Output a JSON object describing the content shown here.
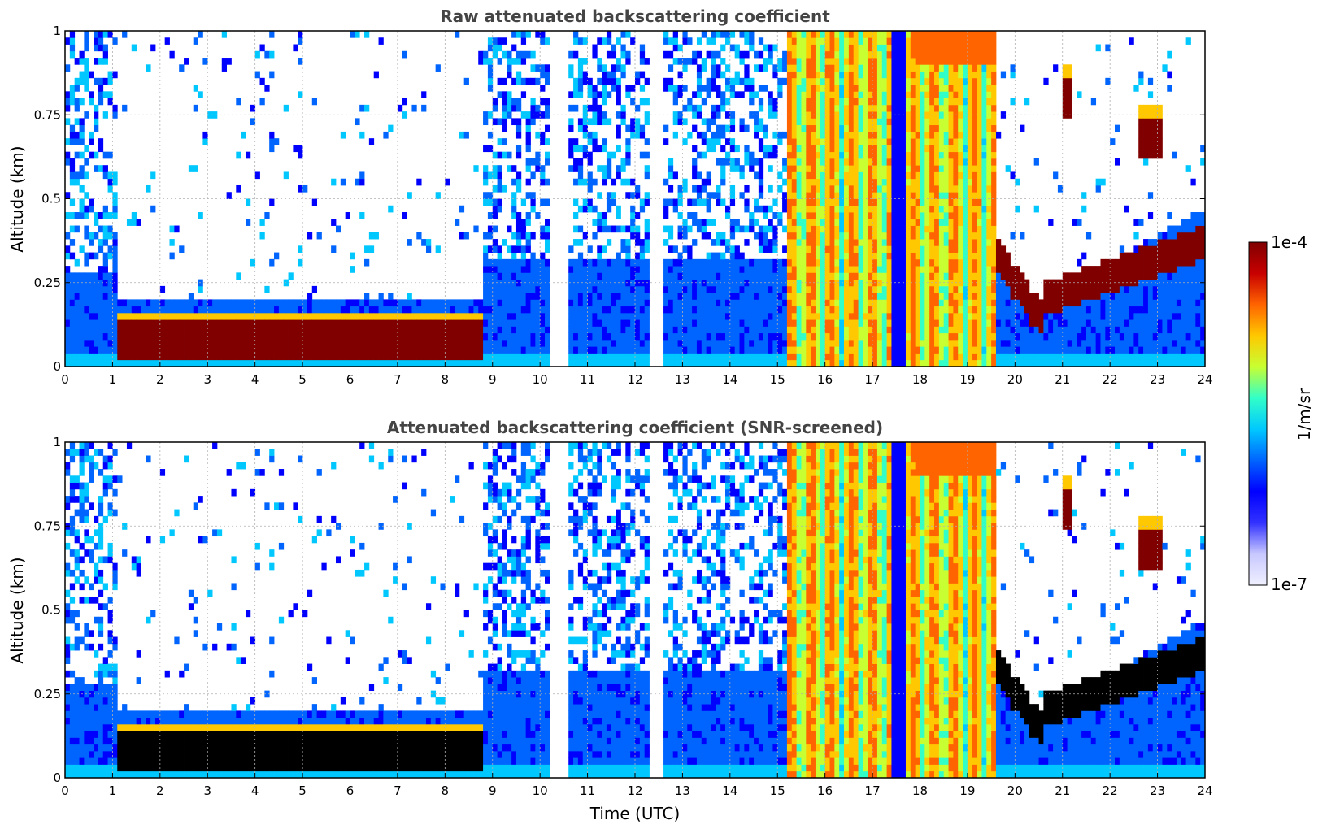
{
  "chart_data": [
    {
      "type": "heatmap",
      "title": "Raw attenuated backscattering coefficient",
      "xlabel": "",
      "ylabel": "Altitude (km)",
      "xlim": [
        0,
        24
      ],
      "ylim": [
        0,
        1
      ],
      "x_ticks": [
        "0",
        "1",
        "2",
        "3",
        "4",
        "5",
        "6",
        "7",
        "8",
        "9",
        "10",
        "11",
        "12",
        "13",
        "14",
        "15",
        "16",
        "17",
        "18",
        "19",
        "20",
        "21",
        "22",
        "23",
        "24"
      ],
      "y_ticks": [
        "0",
        "0.25",
        "0.5",
        "0.75",
        "1"
      ],
      "grid": true,
      "data_gaps_utc": [
        [
          10.2,
          10.6
        ],
        [
          12.3,
          12.6
        ]
      ],
      "layers": [
        {
          "time_start": 1.1,
          "time_end": 8.8,
          "altitude_km": 0.08,
          "level": "high"
        },
        {
          "time_start": 15.2,
          "time_end": 19.6,
          "altitude_km": [
            0.0,
            1.0
          ],
          "level": "medium-high"
        },
        {
          "time_start": 19.6,
          "time_end": 24,
          "altitude_km": [
            0.1,
            0.45
          ],
          "level": "high"
        },
        {
          "time_start": 21.0,
          "time_end": 21.2,
          "altitude_km": 0.8,
          "level": "high"
        },
        {
          "time_start": 22.6,
          "time_end": 23.1,
          "altitude_km": 0.68,
          "level": "high"
        }
      ]
    },
    {
      "type": "heatmap",
      "title": "Attenuated backscattering coefficient (SNR-screened)",
      "xlabel": "Time (UTC)",
      "ylabel": "Altitude (km)",
      "xlim": [
        0,
        24
      ],
      "ylim": [
        0,
        1
      ],
      "x_ticks": [
        "0",
        "1",
        "2",
        "3",
        "4",
        "5",
        "6",
        "7",
        "8",
        "9",
        "10",
        "11",
        "12",
        "13",
        "14",
        "15",
        "16",
        "17",
        "18",
        "19",
        "20",
        "21",
        "22",
        "23",
        "24"
      ],
      "y_ticks": [
        "0",
        "0.25",
        "0.5",
        "0.75",
        "1"
      ],
      "grid": true,
      "data_gaps_utc": [
        [
          10.2,
          10.6
        ],
        [
          12.3,
          12.6
        ]
      ],
      "layers": [
        {
          "time_start": 1.1,
          "time_end": 8.8,
          "altitude_km": 0.08,
          "level": "saturated (black)"
        },
        {
          "time_start": 15.2,
          "time_end": 19.6,
          "altitude_km": [
            0.0,
            1.0
          ],
          "level": "medium-high"
        },
        {
          "time_start": 19.6,
          "time_end": 24,
          "altitude_km": [
            0.1,
            0.45
          ],
          "level": "saturated (black)"
        },
        {
          "time_start": 21.0,
          "time_end": 21.2,
          "altitude_km": 0.8,
          "level": "high"
        },
        {
          "time_start": 22.6,
          "time_end": 23.1,
          "altitude_km": 0.68,
          "level": "high"
        }
      ]
    }
  ],
  "colorbar": {
    "label": "1/m/sr",
    "max_label": "1e-4",
    "min_label": "1e-7",
    "scale": "log",
    "colors": [
      "#f0f0ff",
      "#c8c8ff",
      "#3232ff",
      "#0000ff",
      "#0064ff",
      "#00c8ff",
      "#32ffc8",
      "#c8ff32",
      "#ffc800",
      "#ff6400",
      "#c80000",
      "#800000"
    ]
  }
}
